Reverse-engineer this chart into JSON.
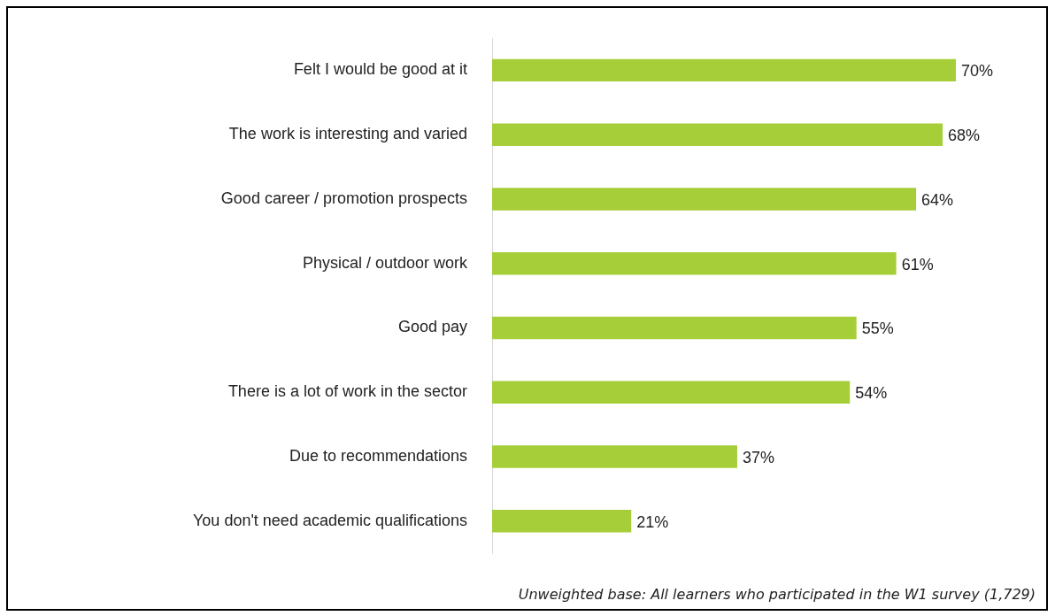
{
  "chart_data": {
    "type": "bar",
    "orientation": "horizontal",
    "categories": [
      "Felt I would be good at it",
      "The work is interesting and varied",
      "Good career / promotion prospects",
      "Physical / outdoor work",
      "Good pay",
      "There is a lot of work in the sector",
      "Due to recommendations",
      "You don't need academic qualifications"
    ],
    "values": [
      70,
      68,
      64,
      61,
      55,
      54,
      37,
      21
    ],
    "value_labels": [
      "70%",
      "68%",
      "64%",
      "61%",
      "55%",
      "54%",
      "37%",
      "21%"
    ],
    "color": "#a6ce39",
    "annotations": [
      "Unweighted base: All learners who participated in the W1 survey (1,729)"
    ]
  }
}
